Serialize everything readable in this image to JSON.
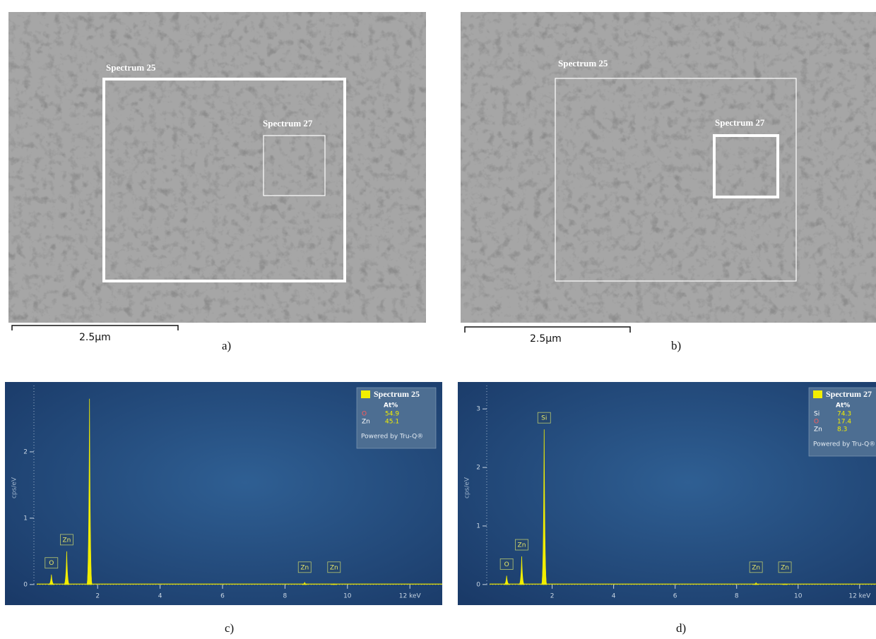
{
  "panels": [
    {
      "label": "a)",
      "regions": [
        {
          "name": "Spectrum 25"
        },
        {
          "name": "Spectrum 27"
        }
      ],
      "scale_bar": "2.5µm"
    },
    {
      "label": "b)",
      "regions": [
        {
          "name": "Spectrum 25"
        },
        {
          "name": "Spectrum 27"
        }
      ],
      "scale_bar": "2.5µm"
    }
  ],
  "spectra": [
    {
      "label": "c)",
      "y_label": "cps/eV",
      "xlim": [
        -0.9,
        12.9
      ],
      "ylim": [
        -0.3,
        3.0
      ],
      "xticks": [
        2,
        4,
        6,
        8,
        10,
        {
          "value": 12,
          "label": "12 keV"
        }
      ],
      "yticks": [
        0,
        1,
        2
      ],
      "legend": {
        "title": "Spectrum 25",
        "header": "At%",
        "rows": [
          {
            "element": "O",
            "value": 54.9
          },
          {
            "element": "Zn",
            "value": 45.1
          }
        ],
        "footer": "Powered by Tru-Q®"
      },
      "peaks": [
        {
          "energy": 0.52,
          "height": 0.15,
          "label": "O"
        },
        {
          "energy": 1.01,
          "height": 0.5,
          "label": "Zn"
        },
        {
          "energy": 1.74,
          "height": 2.8,
          "label": null
        },
        {
          "energy": 8.63,
          "height": 0.03,
          "label": "Zn"
        },
        {
          "energy": 9.57,
          "height": 0.01,
          "label": "Zn"
        }
      ]
    },
    {
      "label": "d)",
      "y_label": "cps/eV",
      "xlim": [
        -1.0,
        12.9
      ],
      "ylim": [
        -0.34,
        3.4
      ],
      "xticks": [
        2,
        4,
        6,
        8,
        10,
        {
          "value": 12,
          "label": "12 keV"
        }
      ],
      "yticks": [
        0,
        1,
        2,
        3
      ],
      "legend": {
        "title": "Spectrum 27",
        "header": "At%",
        "rows": [
          {
            "element": "Si",
            "value": 74.3
          },
          {
            "element": "O",
            "value": 17.4
          },
          {
            "element": "Zn",
            "value": 8.3
          }
        ],
        "footer": "Powered by Tru-Q®"
      },
      "peaks": [
        {
          "energy": 0.52,
          "height": 0.15,
          "label": "O"
        },
        {
          "energy": 1.01,
          "height": 0.48,
          "label": "Zn"
        },
        {
          "energy": 1.74,
          "height": 2.65,
          "label": "Si"
        },
        {
          "energy": 8.63,
          "height": 0.03,
          "label": "Zn"
        },
        {
          "energy": 9.57,
          "height": 0.01,
          "label": "Zn"
        }
      ]
    }
  ]
}
